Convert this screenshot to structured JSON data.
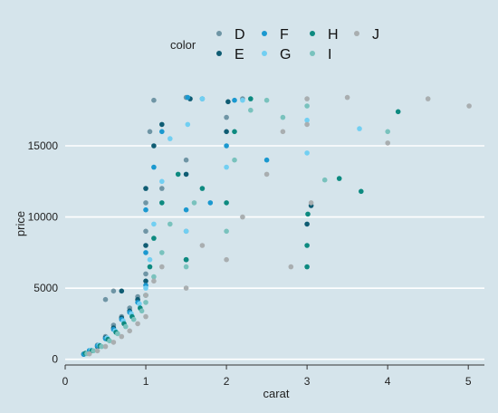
{
  "chart_data": {
    "type": "scatter",
    "xlabel": "carat",
    "ylabel": "price",
    "xlim": [
      0,
      5.2
    ],
    "ylim": [
      -400,
      19200
    ],
    "x_ticks": [
      0,
      1,
      2,
      3,
      4,
      5
    ],
    "y_ticks": [
      0,
      5000,
      10000,
      15000
    ],
    "grid": "horizontal major lines",
    "legend": {
      "title": "color",
      "position": "top",
      "entries": [
        "D",
        "E",
        "F",
        "G",
        "H",
        "I",
        "J"
      ]
    },
    "series": [
      {
        "name": "D",
        "color": "#6f95a5",
        "points": [
          [
            0.23,
            380
          ],
          [
            0.3,
            600
          ],
          [
            0.4,
            1000
          ],
          [
            0.5,
            1600
          ],
          [
            0.6,
            2400
          ],
          [
            0.7,
            3000
          ],
          [
            0.8,
            3600
          ],
          [
            0.9,
            4400
          ],
          [
            1.0,
            6000
          ],
          [
            1.0,
            9000
          ],
          [
            1.0,
            11000
          ],
          [
            1.05,
            16000
          ],
          [
            1.1,
            18200
          ],
          [
            1.2,
            12000
          ],
          [
            1.5,
            14000
          ],
          [
            1.5,
            18400
          ],
          [
            2.0,
            17000
          ],
          [
            2.2,
            18300
          ],
          [
            1.5,
            9000
          ],
          [
            0.5,
            4200
          ],
          [
            0.6,
            4800
          ]
        ]
      },
      {
        "name": "E",
        "color": "#0f5c73",
        "points": [
          [
            0.23,
            350
          ],
          [
            0.3,
            550
          ],
          [
            0.4,
            900
          ],
          [
            0.5,
            1500
          ],
          [
            0.6,
            2200
          ],
          [
            0.7,
            2900
          ],
          [
            0.8,
            3400
          ],
          [
            0.9,
            4200
          ],
          [
            1.0,
            5500
          ],
          [
            1.0,
            8000
          ],
          [
            1.0,
            12000
          ],
          [
            1.1,
            15000
          ],
          [
            1.2,
            16500
          ],
          [
            1.5,
            13000
          ],
          [
            1.55,
            18300
          ],
          [
            2.0,
            16000
          ],
          [
            2.02,
            18100
          ],
          [
            1.5,
            7000
          ],
          [
            0.7,
            4800
          ],
          [
            3.05,
            10800
          ],
          [
            3.0,
            9500
          ]
        ]
      },
      {
        "name": "F",
        "color": "#1a98cf",
        "points": [
          [
            0.23,
            360
          ],
          [
            0.3,
            620
          ],
          [
            0.4,
            950
          ],
          [
            0.5,
            1450
          ],
          [
            0.6,
            2100
          ],
          [
            0.7,
            2800
          ],
          [
            0.8,
            3300
          ],
          [
            0.9,
            4000
          ],
          [
            1.0,
            5200
          ],
          [
            1.0,
            7500
          ],
          [
            1.0,
            10500
          ],
          [
            1.1,
            13500
          ],
          [
            1.2,
            16000
          ],
          [
            1.5,
            10500
          ],
          [
            1.52,
            18400
          ],
          [
            1.7,
            18300
          ],
          [
            2.0,
            15000
          ],
          [
            2.1,
            18200
          ],
          [
            1.8,
            11000
          ],
          [
            2.5,
            14000
          ]
        ]
      },
      {
        "name": "G",
        "color": "#72cff2",
        "points": [
          [
            0.25,
            400
          ],
          [
            0.32,
            650
          ],
          [
            0.42,
            1000
          ],
          [
            0.52,
            1500
          ],
          [
            0.62,
            2000
          ],
          [
            0.72,
            2700
          ],
          [
            0.82,
            3200
          ],
          [
            0.92,
            3900
          ],
          [
            1.0,
            5000
          ],
          [
            1.05,
            7000
          ],
          [
            1.1,
            9500
          ],
          [
            1.2,
            12500
          ],
          [
            1.3,
            15500
          ],
          [
            1.5,
            9000
          ],
          [
            1.52,
            16500
          ],
          [
            1.7,
            18300
          ],
          [
            2.0,
            13500
          ],
          [
            2.2,
            18200
          ],
          [
            3.0,
            14500
          ],
          [
            3.0,
            16800
          ],
          [
            3.65,
            16200
          ]
        ]
      },
      {
        "name": "H",
        "color": "#0d8a80",
        "points": [
          [
            0.25,
            420
          ],
          [
            0.33,
            600
          ],
          [
            0.43,
            950
          ],
          [
            0.53,
            1400
          ],
          [
            0.63,
            1900
          ],
          [
            0.73,
            2500
          ],
          [
            0.83,
            3000
          ],
          [
            0.93,
            3600
          ],
          [
            1.0,
            4500
          ],
          [
            1.05,
            6500
          ],
          [
            1.1,
            8500
          ],
          [
            1.2,
            11000
          ],
          [
            1.4,
            13000
          ],
          [
            1.5,
            7000
          ],
          [
            1.7,
            12000
          ],
          [
            2.0,
            11000
          ],
          [
            2.1,
            16000
          ],
          [
            2.3,
            18300
          ],
          [
            3.0,
            6500
          ],
          [
            3.0,
            8000
          ],
          [
            3.4,
            12700
          ],
          [
            3.67,
            11800
          ],
          [
            4.13,
            17400
          ],
          [
            3.01,
            10200
          ]
        ]
      },
      {
        "name": "I",
        "color": "#79c2bd",
        "points": [
          [
            0.27,
            400
          ],
          [
            0.35,
            600
          ],
          [
            0.45,
            900
          ],
          [
            0.55,
            1300
          ],
          [
            0.65,
            1800
          ],
          [
            0.75,
            2300
          ],
          [
            0.85,
            2800
          ],
          [
            0.95,
            3400
          ],
          [
            1.0,
            4000
          ],
          [
            1.1,
            5800
          ],
          [
            1.2,
            7500
          ],
          [
            1.3,
            9500
          ],
          [
            1.5,
            6500
          ],
          [
            1.6,
            11000
          ],
          [
            2.0,
            9000
          ],
          [
            2.1,
            14000
          ],
          [
            2.3,
            17500
          ],
          [
            2.5,
            18200
          ],
          [
            2.7,
            17000
          ],
          [
            3.0,
            17800
          ],
          [
            3.22,
            12600
          ],
          [
            4.0,
            16000
          ]
        ]
      },
      {
        "name": "J",
        "color": "#a9aeb0",
        "points": [
          [
            0.3,
            380
          ],
          [
            0.4,
            600
          ],
          [
            0.5,
            900
          ],
          [
            0.6,
            1200
          ],
          [
            0.7,
            1600
          ],
          [
            0.8,
            2000
          ],
          [
            0.9,
            2500
          ],
          [
            1.0,
            3000
          ],
          [
            1.0,
            4500
          ],
          [
            1.1,
            5500
          ],
          [
            1.2,
            6500
          ],
          [
            1.5,
            5000
          ],
          [
            1.7,
            8000
          ],
          [
            2.0,
            7000
          ],
          [
            2.2,
            10000
          ],
          [
            2.5,
            13000
          ],
          [
            2.7,
            16000
          ],
          [
            3.0,
            18300
          ],
          [
            3.0,
            16500
          ],
          [
            3.5,
            18400
          ],
          [
            4.0,
            15200
          ],
          [
            4.5,
            18300
          ],
          [
            5.01,
            17800
          ],
          [
            2.8,
            6500
          ],
          [
            3.05,
            11000
          ]
        ]
      }
    ]
  }
}
